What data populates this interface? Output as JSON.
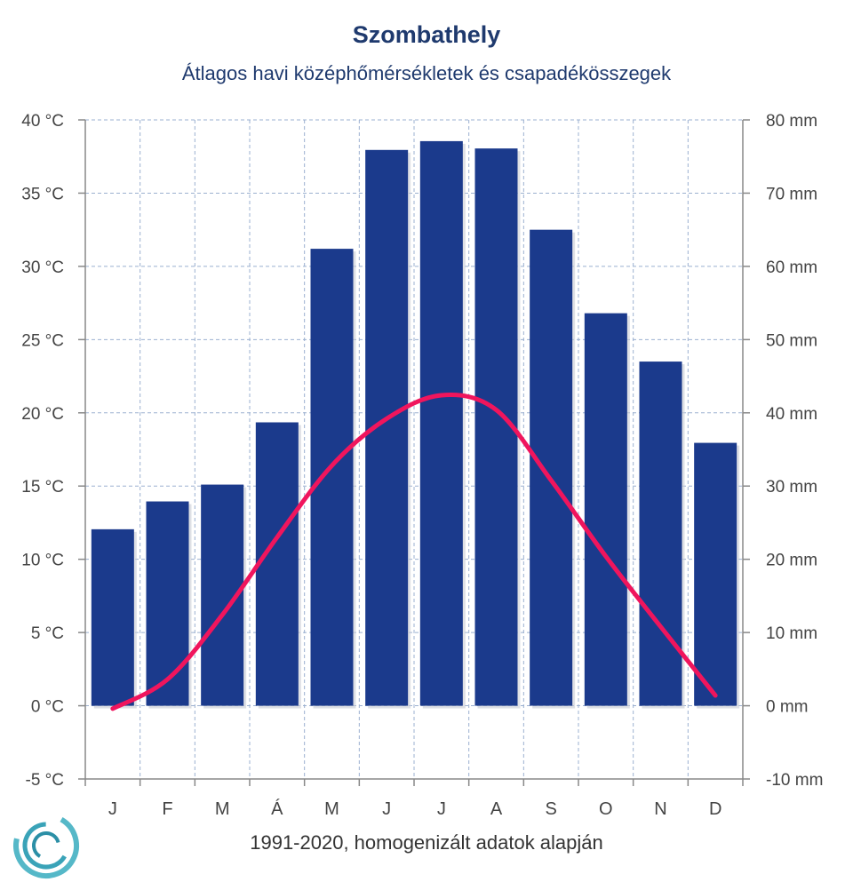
{
  "header": {
    "title": "Szombathely",
    "subtitle": "Átlagos havi középhőmérsékletek  és csapadékösszegek"
  },
  "footer": {
    "note": "1991-2020, homogenizált adatok alapján"
  },
  "colors": {
    "bars": "#1b3a8c",
    "line": "#f0155d",
    "grid": "#9bb0d0",
    "axis": "#888888"
  },
  "chart_data": {
    "type": "bar+line",
    "categories": [
      "J",
      "F",
      "M",
      "Á",
      "M",
      "J",
      "J",
      "A",
      "S",
      "O",
      "N",
      "D"
    ],
    "series": [
      {
        "type": "bar",
        "axis": "right",
        "unit": "mm",
        "values": [
          24.1,
          27.9,
          30.2,
          38.7,
          62.4,
          75.9,
          77.1,
          76.1,
          65.0,
          53.6,
          47.0,
          35.9
        ]
      },
      {
        "type": "line",
        "axis": "left",
        "unit": "°C",
        "values": [
          -0.2,
          1.8,
          6.2,
          11.5,
          16.4,
          19.6,
          21.2,
          20.2,
          15.4,
          10.2,
          5.4,
          0.7
        ]
      }
    ],
    "left_axis": {
      "ticks": [
        "40 °C",
        "35 °C",
        "30 °C",
        "25 °C",
        "20 °C",
        "15 °C",
        "10 °C",
        "5 °C",
        "0 °C",
        "-5 °C"
      ],
      "range": [
        -5,
        40
      ]
    },
    "right_axis": {
      "ticks": [
        "80 mm",
        "70 mm",
        "60 mm",
        "50 mm",
        "40 mm",
        "30 mm",
        "20 mm",
        "10 mm",
        "0 mm",
        "-10 mm"
      ],
      "range": [
        -10,
        80
      ]
    },
    "grid": true
  }
}
